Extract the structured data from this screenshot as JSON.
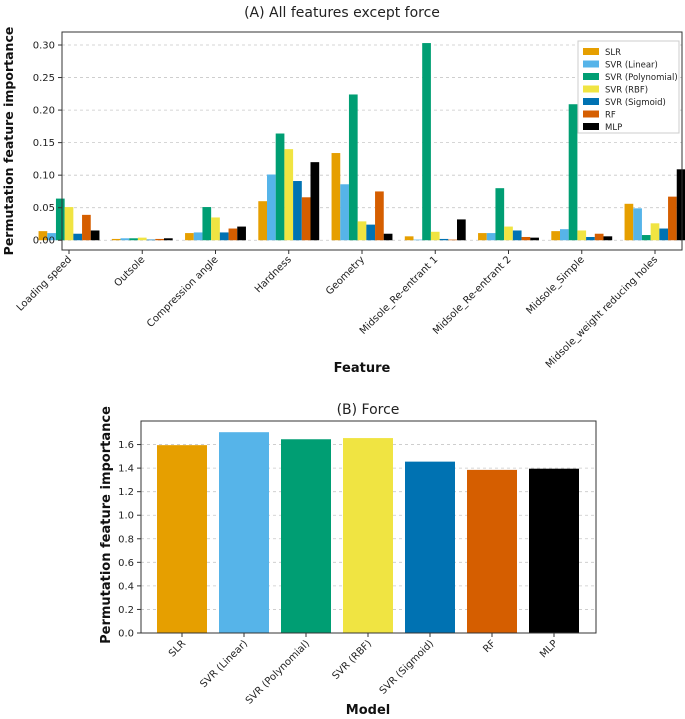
{
  "models": [
    "SLR",
    "SVR (Linear)",
    "SVR (Polynomial)",
    "SVR (RBF)",
    "SVR (Sigmoid)",
    "RF",
    "MLP"
  ],
  "colors": [
    "#E69F00",
    "#56B4E9",
    "#009E73",
    "#F0E442",
    "#0072B2",
    "#D55E00",
    "#000000"
  ],
  "chart_data": [
    {
      "type": "bar",
      "title": "(A) All features except force",
      "xlabel": "Feature",
      "ylabel": "Permutation feature importance",
      "ylim": [
        -0.015,
        0.32
      ],
      "yticks": [
        0.0,
        0.05,
        0.1,
        0.15,
        0.2,
        0.25,
        0.3
      ],
      "ytick_labels": [
        "0.00",
        "0.05",
        "0.10",
        "0.15",
        "0.20",
        "0.25",
        "0.30"
      ],
      "grid": "horizontal dashed",
      "legend": "top-right",
      "categories": [
        "Loading speed",
        "Outsole",
        "Compression angle",
        "Hardness",
        "Geometry",
        "Midsole_Re-entrant 1",
        "Midsole_Re-entrant 2",
        "Midsole_Simple",
        "Midsole_weight reducing holes"
      ],
      "series": [
        {
          "name": "SLR",
          "values": [
            0.014,
            0.002,
            0.011,
            0.06,
            0.134,
            0.006,
            0.011,
            0.014,
            0.056
          ]
        },
        {
          "name": "SVR (Linear)",
          "values": [
            0.011,
            0.003,
            0.012,
            0.101,
            0.086,
            0.001,
            0.011,
            0.017,
            0.049
          ]
        },
        {
          "name": "SVR (Polynomial)",
          "values": [
            0.064,
            0.003,
            0.051,
            0.164,
            0.224,
            0.303,
            0.08,
            0.209,
            0.008
          ]
        },
        {
          "name": "SVR (RBF)",
          "values": [
            0.051,
            0.004,
            0.035,
            0.14,
            0.029,
            0.013,
            0.021,
            0.015,
            0.026
          ]
        },
        {
          "name": "SVR (Sigmoid)",
          "values": [
            0.01,
            0.001,
            0.012,
            0.091,
            0.024,
            0.002,
            0.015,
            0.005,
            0.018
          ]
        },
        {
          "name": "RF",
          "values": [
            0.039,
            0.002,
            0.018,
            0.066,
            0.075,
            0.001,
            0.005,
            0.01,
            0.067
          ]
        },
        {
          "name": "MLP",
          "values": [
            0.015,
            0.003,
            0.021,
            0.12,
            0.01,
            0.032,
            0.004,
            0.006,
            0.109
          ]
        }
      ]
    },
    {
      "type": "bar",
      "title": "(B) Force",
      "xlabel": "Model",
      "ylabel": "Permutation feature importance",
      "ylim": [
        0,
        1.8
      ],
      "yticks": [
        0.0,
        0.2,
        0.4,
        0.6,
        0.8,
        1.0,
        1.2,
        1.4,
        1.6
      ],
      "ytick_labels": [
        "0.0",
        "0.2",
        "0.4",
        "0.6",
        "0.8",
        "1.0",
        "1.2",
        "1.4",
        "1.6"
      ],
      "grid": "horizontal dashed",
      "categories": [
        "SLR",
        "SVR (Linear)",
        "SVR (Polynomial)",
        "SVR (RBF)",
        "SVR (Sigmoid)",
        "RF",
        "MLP"
      ],
      "values": [
        1.595,
        1.705,
        1.645,
        1.655,
        1.455,
        1.385,
        1.395
      ]
    }
  ]
}
